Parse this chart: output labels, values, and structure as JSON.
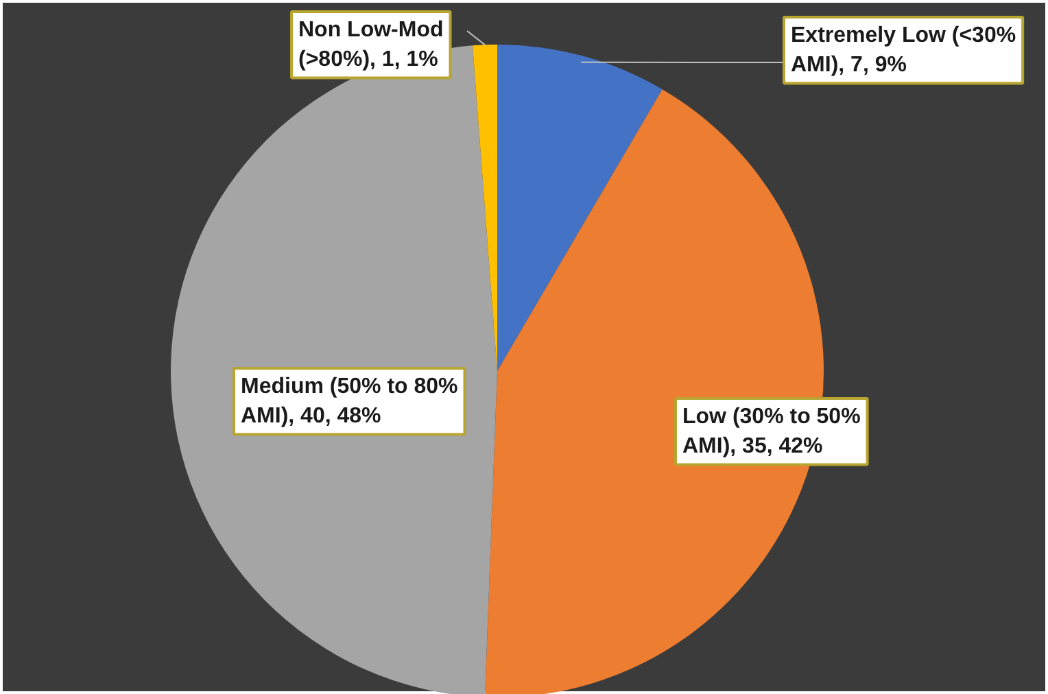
{
  "chart_data": {
    "type": "pie",
    "categories": [
      "Extremely Low (<30% AMI)",
      "Low (30% to 50% AMI)",
      "Medium (50% to 80% AMI)",
      "Non Low-Mod (>80%)"
    ],
    "values": [
      7,
      35,
      40,
      1
    ],
    "colors": [
      "#4472c4",
      "#ed7d31",
      "#a5a5a5",
      "#ffc000"
    ],
    "value_labels": [
      "7, 9%",
      "35, 42%",
      "40, 48%",
      "1, 1%"
    ],
    "legend": false
  }
}
